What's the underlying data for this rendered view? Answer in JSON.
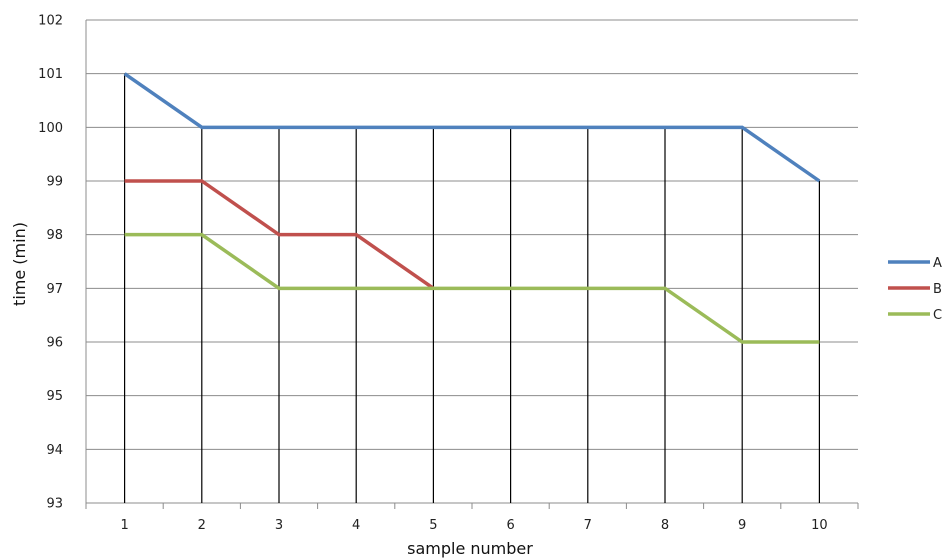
{
  "chart_data": {
    "type": "line",
    "title": "",
    "xlabel": "sample number",
    "ylabel": "time (min)",
    "x": [
      1,
      2,
      3,
      4,
      5,
      6,
      7,
      8,
      9,
      10
    ],
    "ylim": [
      93,
      102
    ],
    "yticks": [
      93,
      94,
      95,
      96,
      97,
      98,
      99,
      100,
      101,
      102
    ],
    "grid": true,
    "drop_lines": true,
    "legend_position": "right",
    "series": [
      {
        "name": "A",
        "color": "#4f81bd",
        "values": [
          101,
          100,
          100,
          100,
          100,
          100,
          100,
          100,
          100,
          99
        ]
      },
      {
        "name": "B",
        "color": "#c0504d",
        "values": [
          99,
          99,
          98,
          98,
          97,
          null,
          null,
          null,
          null,
          null
        ]
      },
      {
        "name": "C",
        "color": "#9bbb59",
        "values": [
          98,
          98,
          97,
          97,
          97,
          97,
          97,
          97,
          96,
          96
        ]
      }
    ]
  }
}
